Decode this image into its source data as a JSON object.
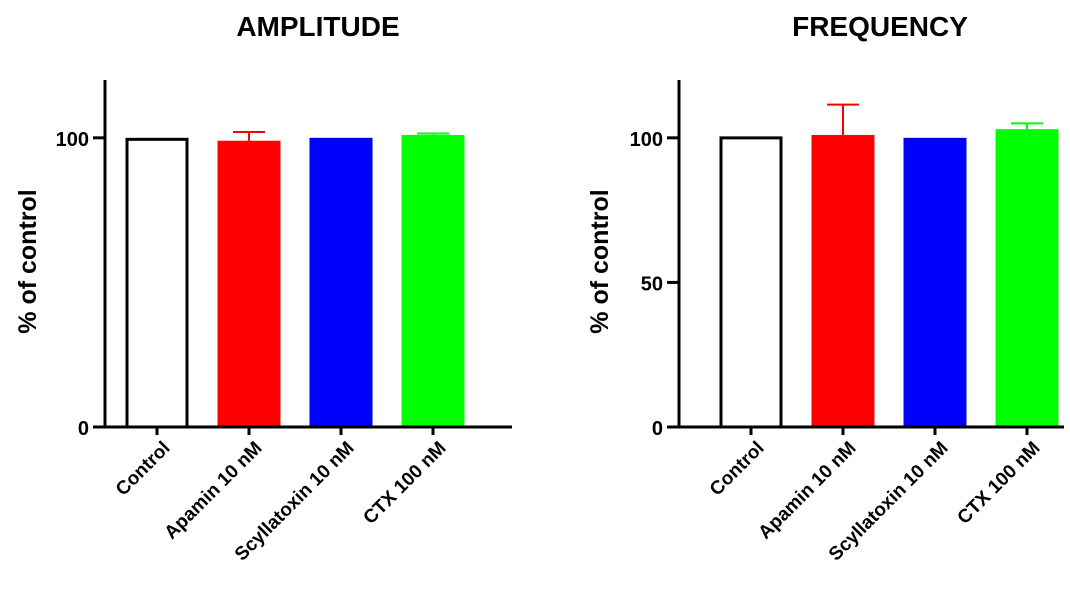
{
  "chart_data": [
    {
      "type": "bar",
      "title": "AMPLITUDE",
      "ylabel": "% of control",
      "xlabel": "",
      "categories": [
        "Control",
        "Apamin 10 nM",
        "Scyllatoxin 10 nM",
        "CTX 100 nM"
      ],
      "values": [
        100,
        99,
        100,
        101
      ],
      "errors": [
        0,
        3,
        0,
        0.5
      ],
      "colors": [
        "#ffffff",
        "#ff0000",
        "#0000ff",
        "#00ff00"
      ],
      "ylim": [
        0,
        120
      ],
      "yticks": [
        0,
        100
      ],
      "ytick_labels": [
        "0",
        "100"
      ],
      "grid": false
    },
    {
      "type": "bar",
      "title": "FREQUENCY",
      "ylabel": "% of control",
      "xlabel": "",
      "categories": [
        "Control",
        "Apamin 10 nM",
        "Scyllatoxin 10 nM",
        "CTX 100 nM"
      ],
      "values": [
        100.5,
        101,
        100,
        103
      ],
      "errors": [
        0,
        10.5,
        0,
        2
      ],
      "colors": [
        "#ffffff",
        "#ff0000",
        "#0000ff",
        "#00ff00"
      ],
      "ylim": [
        0,
        120
      ],
      "yticks": [
        0,
        50,
        100
      ],
      "ytick_labels": [
        "0",
        "50",
        "100"
      ],
      "grid": false
    }
  ]
}
